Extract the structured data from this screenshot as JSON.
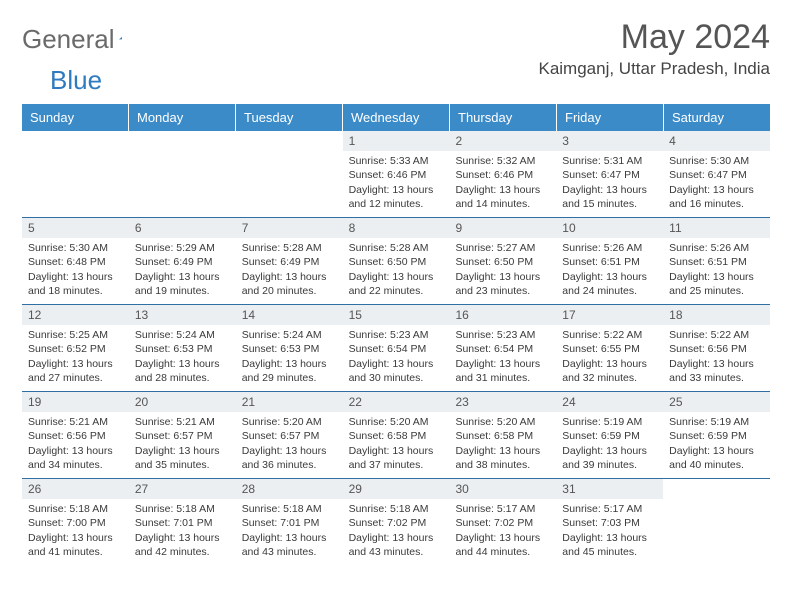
{
  "logo": {
    "part1": "General",
    "part2": "Blue"
  },
  "title": "May 2024",
  "location": "Kaimganj, Uttar Pradesh, India",
  "colors": {
    "header_bg": "#3b8bc9",
    "header_text": "#ffffff",
    "daynum_bg": "#eceff1",
    "week_border": "#2f6fa3",
    "logo_gray": "#6a6a6a",
    "logo_blue": "#2f7bbf"
  },
  "day_names": [
    "Sunday",
    "Monday",
    "Tuesday",
    "Wednesday",
    "Thursday",
    "Friday",
    "Saturday"
  ],
  "weeks": [
    [
      {
        "num": "",
        "lines": []
      },
      {
        "num": "",
        "lines": []
      },
      {
        "num": "",
        "lines": []
      },
      {
        "num": "1",
        "lines": [
          "Sunrise: 5:33 AM",
          "Sunset: 6:46 PM",
          "Daylight: 13 hours and 12 minutes."
        ]
      },
      {
        "num": "2",
        "lines": [
          "Sunrise: 5:32 AM",
          "Sunset: 6:46 PM",
          "Daylight: 13 hours and 14 minutes."
        ]
      },
      {
        "num": "3",
        "lines": [
          "Sunrise: 5:31 AM",
          "Sunset: 6:47 PM",
          "Daylight: 13 hours and 15 minutes."
        ]
      },
      {
        "num": "4",
        "lines": [
          "Sunrise: 5:30 AM",
          "Sunset: 6:47 PM",
          "Daylight: 13 hours and 16 minutes."
        ]
      }
    ],
    [
      {
        "num": "5",
        "lines": [
          "Sunrise: 5:30 AM",
          "Sunset: 6:48 PM",
          "Daylight: 13 hours and 18 minutes."
        ]
      },
      {
        "num": "6",
        "lines": [
          "Sunrise: 5:29 AM",
          "Sunset: 6:49 PM",
          "Daylight: 13 hours and 19 minutes."
        ]
      },
      {
        "num": "7",
        "lines": [
          "Sunrise: 5:28 AM",
          "Sunset: 6:49 PM",
          "Daylight: 13 hours and 20 minutes."
        ]
      },
      {
        "num": "8",
        "lines": [
          "Sunrise: 5:28 AM",
          "Sunset: 6:50 PM",
          "Daylight: 13 hours and 22 minutes."
        ]
      },
      {
        "num": "9",
        "lines": [
          "Sunrise: 5:27 AM",
          "Sunset: 6:50 PM",
          "Daylight: 13 hours and 23 minutes."
        ]
      },
      {
        "num": "10",
        "lines": [
          "Sunrise: 5:26 AM",
          "Sunset: 6:51 PM",
          "Daylight: 13 hours and 24 minutes."
        ]
      },
      {
        "num": "11",
        "lines": [
          "Sunrise: 5:26 AM",
          "Sunset: 6:51 PM",
          "Daylight: 13 hours and 25 minutes."
        ]
      }
    ],
    [
      {
        "num": "12",
        "lines": [
          "Sunrise: 5:25 AM",
          "Sunset: 6:52 PM",
          "Daylight: 13 hours and 27 minutes."
        ]
      },
      {
        "num": "13",
        "lines": [
          "Sunrise: 5:24 AM",
          "Sunset: 6:53 PM",
          "Daylight: 13 hours and 28 minutes."
        ]
      },
      {
        "num": "14",
        "lines": [
          "Sunrise: 5:24 AM",
          "Sunset: 6:53 PM",
          "Daylight: 13 hours and 29 minutes."
        ]
      },
      {
        "num": "15",
        "lines": [
          "Sunrise: 5:23 AM",
          "Sunset: 6:54 PM",
          "Daylight: 13 hours and 30 minutes."
        ]
      },
      {
        "num": "16",
        "lines": [
          "Sunrise: 5:23 AM",
          "Sunset: 6:54 PM",
          "Daylight: 13 hours and 31 minutes."
        ]
      },
      {
        "num": "17",
        "lines": [
          "Sunrise: 5:22 AM",
          "Sunset: 6:55 PM",
          "Daylight: 13 hours and 32 minutes."
        ]
      },
      {
        "num": "18",
        "lines": [
          "Sunrise: 5:22 AM",
          "Sunset: 6:56 PM",
          "Daylight: 13 hours and 33 minutes."
        ]
      }
    ],
    [
      {
        "num": "19",
        "lines": [
          "Sunrise: 5:21 AM",
          "Sunset: 6:56 PM",
          "Daylight: 13 hours and 34 minutes."
        ]
      },
      {
        "num": "20",
        "lines": [
          "Sunrise: 5:21 AM",
          "Sunset: 6:57 PM",
          "Daylight: 13 hours and 35 minutes."
        ]
      },
      {
        "num": "21",
        "lines": [
          "Sunrise: 5:20 AM",
          "Sunset: 6:57 PM",
          "Daylight: 13 hours and 36 minutes."
        ]
      },
      {
        "num": "22",
        "lines": [
          "Sunrise: 5:20 AM",
          "Sunset: 6:58 PM",
          "Daylight: 13 hours and 37 minutes."
        ]
      },
      {
        "num": "23",
        "lines": [
          "Sunrise: 5:20 AM",
          "Sunset: 6:58 PM",
          "Daylight: 13 hours and 38 minutes."
        ]
      },
      {
        "num": "24",
        "lines": [
          "Sunrise: 5:19 AM",
          "Sunset: 6:59 PM",
          "Daylight: 13 hours and 39 minutes."
        ]
      },
      {
        "num": "25",
        "lines": [
          "Sunrise: 5:19 AM",
          "Sunset: 6:59 PM",
          "Daylight: 13 hours and 40 minutes."
        ]
      }
    ],
    [
      {
        "num": "26",
        "lines": [
          "Sunrise: 5:18 AM",
          "Sunset: 7:00 PM",
          "Daylight: 13 hours and 41 minutes."
        ]
      },
      {
        "num": "27",
        "lines": [
          "Sunrise: 5:18 AM",
          "Sunset: 7:01 PM",
          "Daylight: 13 hours and 42 minutes."
        ]
      },
      {
        "num": "28",
        "lines": [
          "Sunrise: 5:18 AM",
          "Sunset: 7:01 PM",
          "Daylight: 13 hours and 43 minutes."
        ]
      },
      {
        "num": "29",
        "lines": [
          "Sunrise: 5:18 AM",
          "Sunset: 7:02 PM",
          "Daylight: 13 hours and 43 minutes."
        ]
      },
      {
        "num": "30",
        "lines": [
          "Sunrise: 5:17 AM",
          "Sunset: 7:02 PM",
          "Daylight: 13 hours and 44 minutes."
        ]
      },
      {
        "num": "31",
        "lines": [
          "Sunrise: 5:17 AM",
          "Sunset: 7:03 PM",
          "Daylight: 13 hours and 45 minutes."
        ]
      },
      {
        "num": "",
        "lines": []
      }
    ]
  ]
}
